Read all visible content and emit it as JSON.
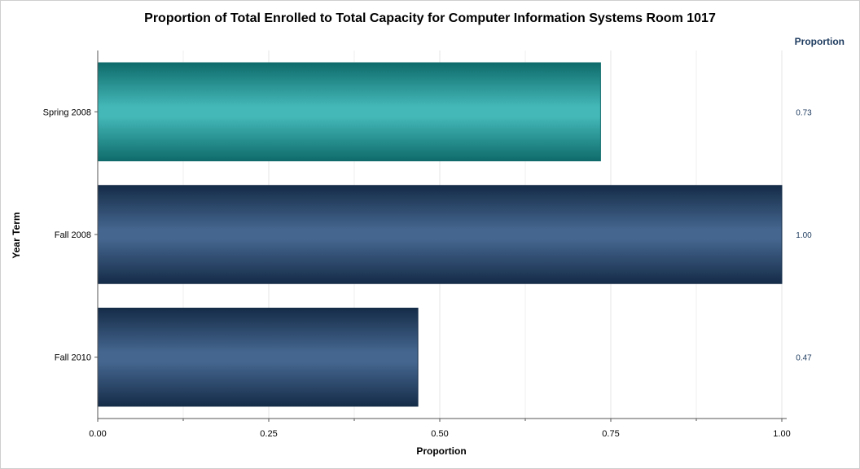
{
  "chart_data": {
    "type": "bar",
    "orientation": "horizontal",
    "title": "Proportion of Total Enrolled to Total Capacity for Computer Information Systems Room 1017",
    "xlabel": "Proportion",
    "ylabel": "Year Term",
    "categories": [
      "Spring 2008",
      "Fall 2008",
      "Fall 2010"
    ],
    "values": [
      0.735,
      1.0,
      0.468
    ],
    "value_labels": [
      "0.73",
      "1.00",
      "0.47"
    ],
    "value_column_header": "Proportion",
    "xlim": [
      0,
      1
    ],
    "x_ticks": [
      "0.00",
      "0.25",
      "0.50",
      "0.75",
      "1.00"
    ],
    "grid": true,
    "bar_colors": {
      "Spring 2008": {
        "light": "#44b8b8",
        "dark": "#0f6b6b"
      },
      "Fall 2008": {
        "light": "#45668f",
        "dark": "#152c48"
      },
      "Fall 2010": {
        "light": "#45668f",
        "dark": "#152c48"
      }
    },
    "accent_color": "#1c3a5e"
  }
}
